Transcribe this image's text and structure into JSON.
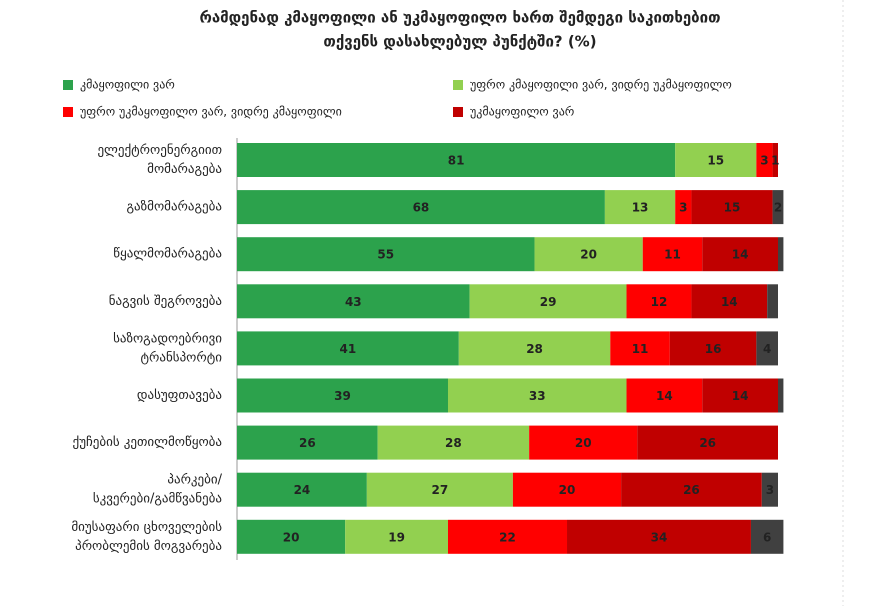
{
  "chart_data": {
    "type": "stacked-bar-horizontal",
    "title": [
      "რამდენად კმაყოფილი  ან უკმაყოფილო ხართ შემდეგი საკითხებით",
      "თქვენს დასახლებულ პუნქტში? (%)"
    ],
    "categories": [
      [
        "ელექტროენერგიით",
        "მომარაგება"
      ],
      [
        "გაზმომარაგება"
      ],
      [
        "წყალმომარაგება"
      ],
      [
        "ნაგვის შეგროვება"
      ],
      [
        "საზოგადოებრივი",
        "ტრანსპორტი"
      ],
      [
        "დასუფთავება"
      ],
      [
        "ქუჩების კეთილმოწყობა"
      ],
      [
        "პარკები/",
        "სკვერები/გამწვანება"
      ],
      [
        "მიუსაფარი ცხოველების",
        "პრობლემის მოგვარება"
      ]
    ],
    "xlim": [
      0,
      100
    ],
    "series": [
      {
        "name": "კმაყოფილი ვარ",
        "color": "#2ca24c",
        "values": [
          81,
          68,
          55,
          43,
          41,
          39,
          26,
          24,
          20
        ]
      },
      {
        "name": "უფრო კმაყოფილი ვარ, ვიდრე უკმაყოფილო",
        "color": "#92d050",
        "values": [
          15,
          13,
          20,
          29,
          28,
          33,
          28,
          27,
          19
        ]
      },
      {
        "name": "უფრო უკმაყოფილო ვარ, ვიდრე კმაყოფილი",
        "color": "#ff0000",
        "values": [
          3,
          3,
          11,
          12,
          11,
          14,
          20,
          20,
          22
        ]
      },
      {
        "name": "უკმაყოფილო ვარ",
        "color": "#c00000",
        "values": [
          1,
          15,
          14,
          14,
          16,
          14,
          26,
          26,
          34
        ]
      },
      {
        "color": "#404040",
        "values": [
          0,
          2,
          1,
          2,
          4,
          1,
          0,
          3,
          6
        ],
        "value_labels": [
          null,
          "2",
          null,
          null,
          "4",
          null,
          null,
          "3",
          "6"
        ]
      }
    ]
  }
}
